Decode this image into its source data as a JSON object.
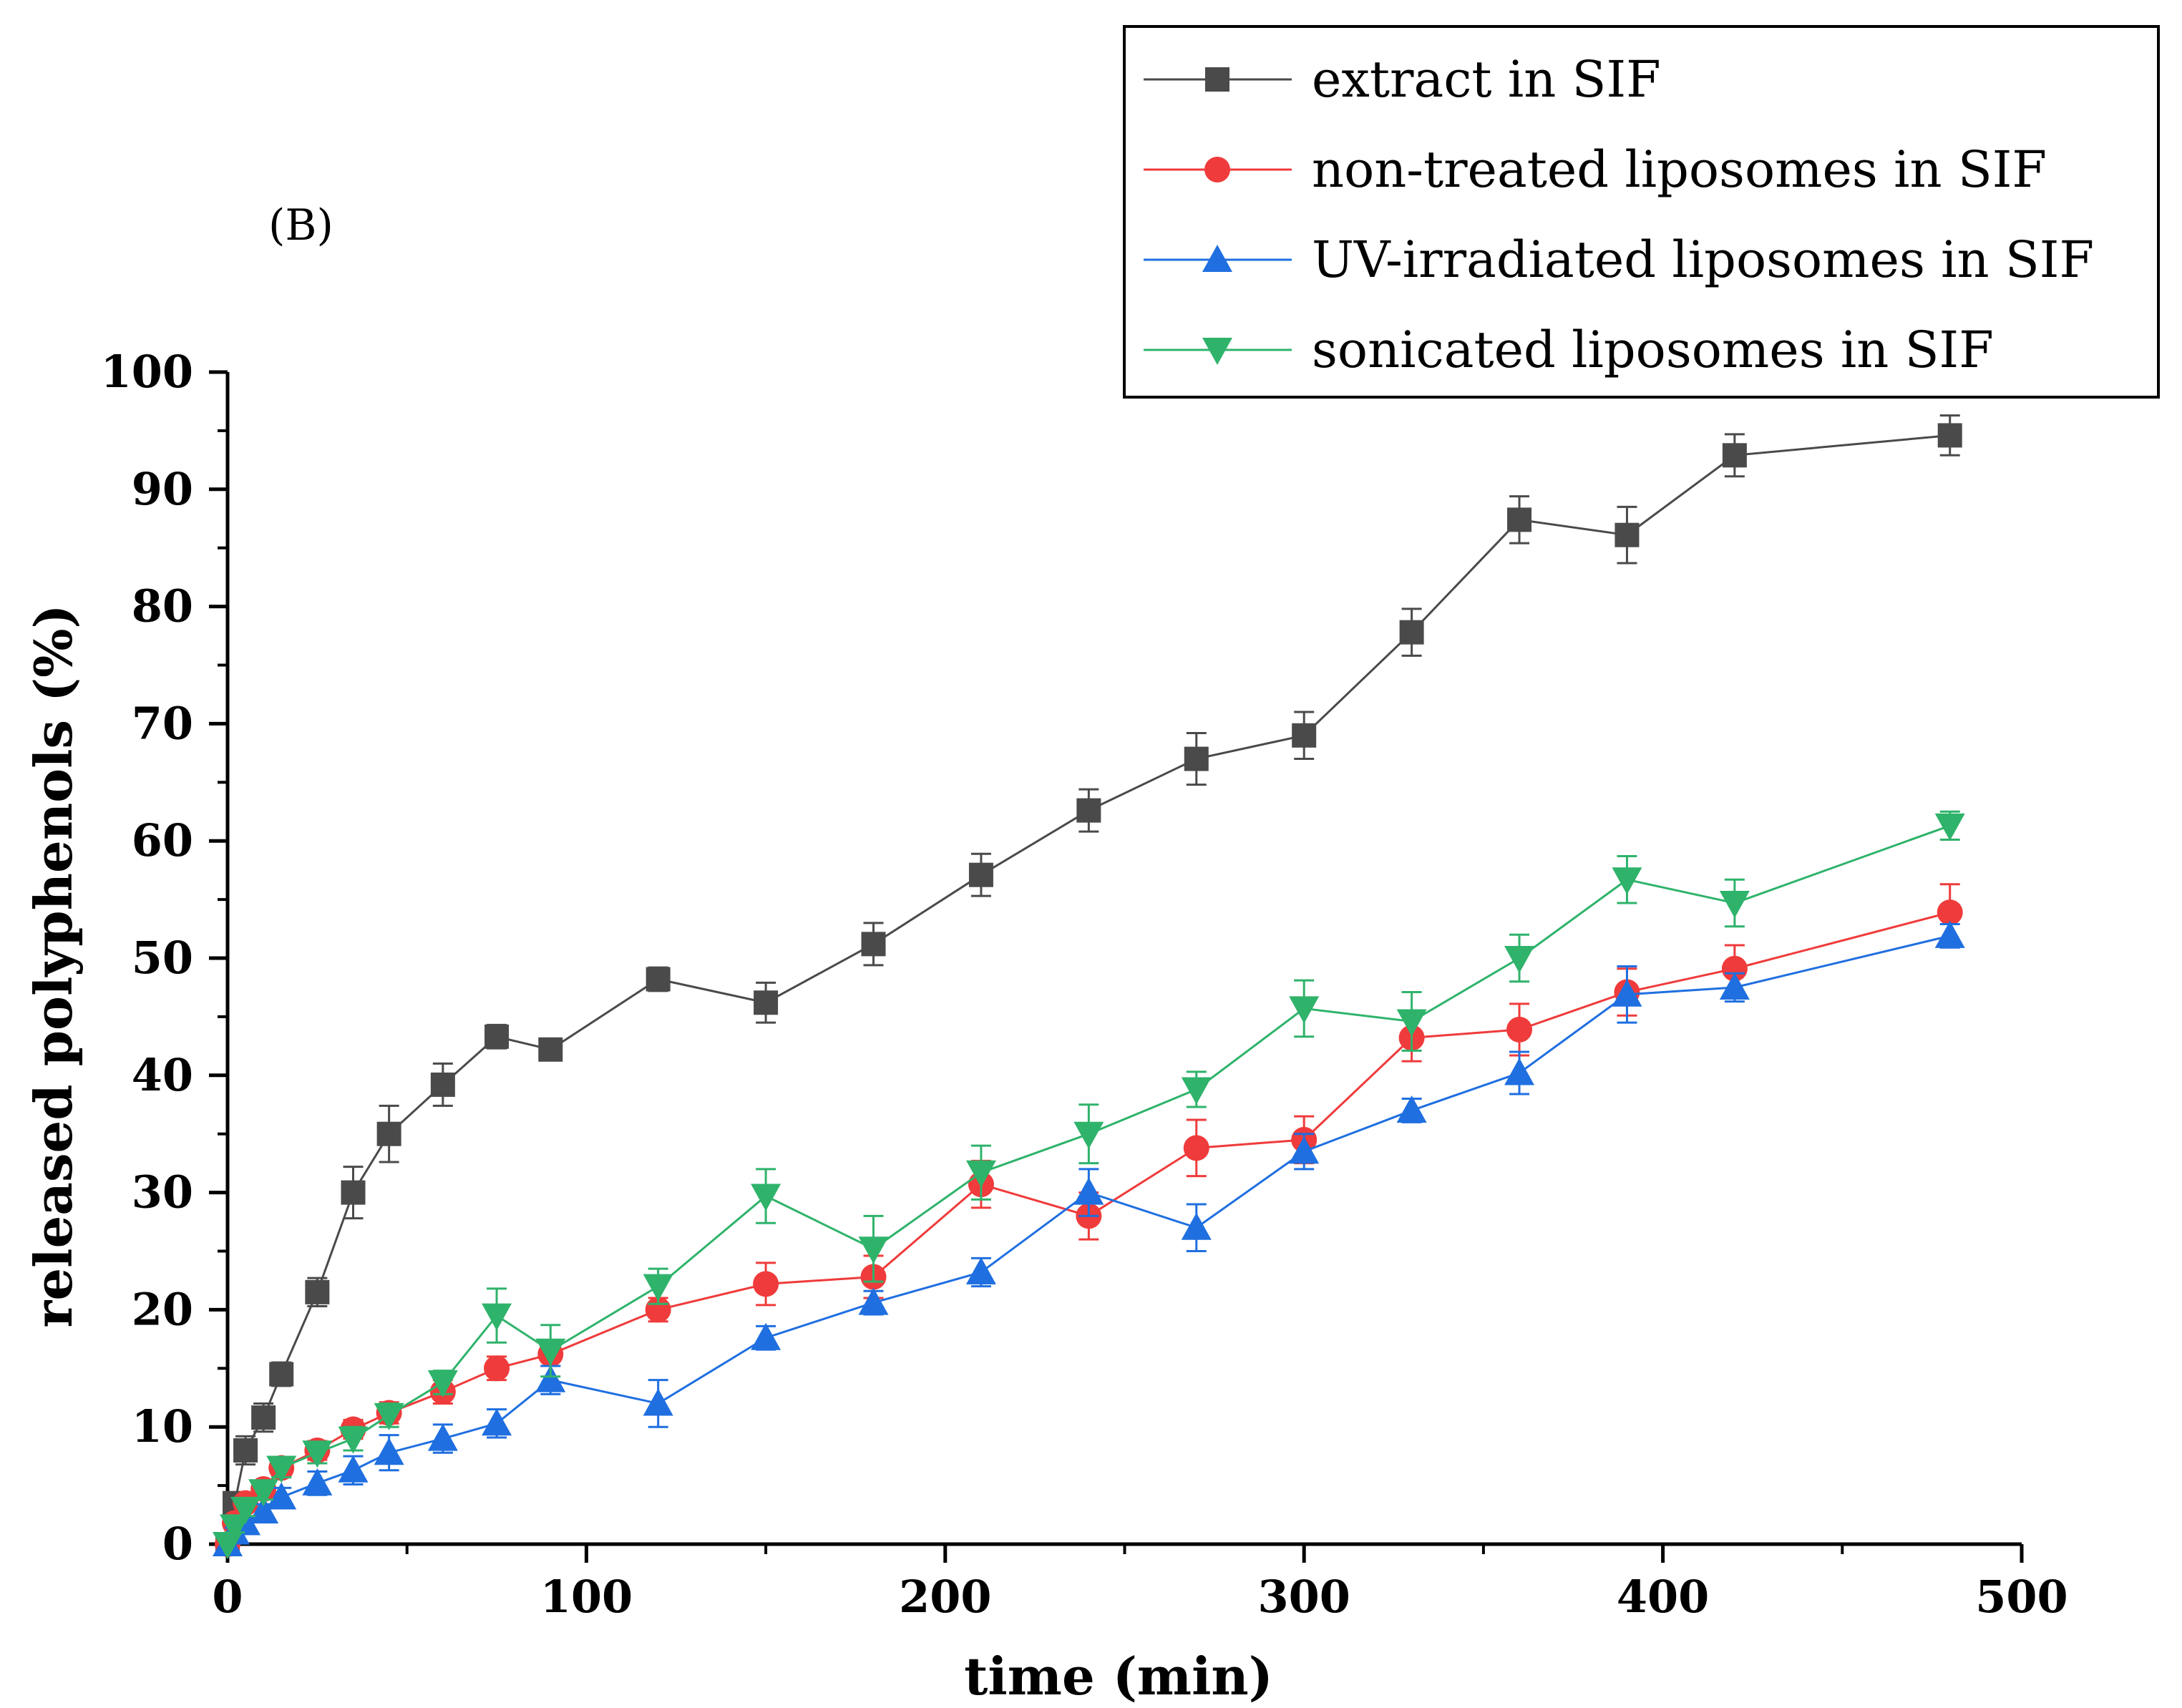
{
  "chart_data": {
    "type": "line",
    "panel_label": "(B)",
    "xlabel": "time (min)",
    "ylabel": "released polyphenols (%)",
    "xlim": [
      0,
      500
    ],
    "ylim": [
      0,
      100
    ],
    "x_ticks": [
      0,
      100,
      200,
      300,
      400,
      500
    ],
    "y_ticks": [
      0,
      10,
      20,
      30,
      40,
      50,
      60,
      70,
      80,
      90,
      100
    ],
    "x_tick_labels": [
      "0",
      "100",
      "200",
      "300",
      "400",
      "500"
    ],
    "y_tick_labels": [
      "0",
      "10",
      "20",
      "30",
      "40",
      "50",
      "60",
      "70",
      "80",
      "90",
      "100"
    ],
    "legend_position": "top-right",
    "series": [
      {
        "name": "extract in SIF",
        "color": "#4a4a4a",
        "marker": "square",
        "x": [
          0,
          2,
          5,
          10,
          15,
          25,
          35,
          45,
          60,
          75,
          90,
          120,
          150,
          180,
          210,
          240,
          270,
          300,
          330,
          360,
          390,
          420,
          480
        ],
        "y": [
          0,
          3.5,
          8,
          10.8,
          14.5,
          21.5,
          30,
          35,
          39.2,
          43.3,
          42.2,
          48.2,
          46.2,
          51.2,
          57.1,
          62.6,
          67,
          69,
          77.8,
          87.4,
          86.1,
          92.9,
          94.6
        ],
        "err": [
          0,
          0.8,
          1.2,
          1.2,
          1.0,
          1.2,
          2.2,
          2.4,
          1.8,
          1.0,
          0.8,
          1.0,
          1.7,
          1.8,
          1.8,
          1.8,
          2.2,
          2.0,
          2.0,
          2.0,
          2.4,
          1.8,
          1.7
        ]
      },
      {
        "name": "non-treated liposomes in SIF",
        "color": "#ef3b3b",
        "marker": "circle",
        "x": [
          0,
          2,
          5,
          10,
          15,
          25,
          35,
          45,
          60,
          75,
          90,
          120,
          150,
          180,
          210,
          240,
          270,
          300,
          330,
          360,
          390,
          420,
          480
        ],
        "y": [
          0,
          1.8,
          3.5,
          4.7,
          6.5,
          8.0,
          9.8,
          11.2,
          13.0,
          15.0,
          16.2,
          20.0,
          22.2,
          22.8,
          30.7,
          28.0,
          33.8,
          34.5,
          43.2,
          43.9,
          47.1,
          49.1,
          53.9
        ],
        "err": [
          0,
          0.5,
          0.6,
          0.7,
          0.7,
          0.8,
          0.8,
          0.9,
          1.0,
          1.0,
          1.0,
          1.0,
          1.8,
          1.8,
          2.0,
          2.0,
          2.4,
          2.0,
          2.0,
          2.2,
          2.0,
          2.0,
          2.4
        ]
      },
      {
        "name": "UV-irradiated liposomes in SIF",
        "color": "#1f6fe0",
        "marker": "triangle-up",
        "x": [
          0,
          2,
          5,
          10,
          15,
          25,
          35,
          45,
          60,
          75,
          90,
          120,
          150,
          180,
          210,
          240,
          270,
          300,
          330,
          360,
          390,
          420,
          480
        ],
        "y": [
          0,
          1.0,
          1.8,
          2.8,
          4.0,
          5.2,
          6.3,
          7.8,
          9.0,
          10.3,
          14.0,
          12.0,
          17.6,
          20.6,
          23.2,
          30.0,
          27.0,
          33.5,
          37.0,
          40.2,
          46.9,
          47.5,
          51.9
        ],
        "err": [
          0,
          0.4,
          0.5,
          0.6,
          0.8,
          1.0,
          1.2,
          1.5,
          1.2,
          1.2,
          1.2,
          2.0,
          1.0,
          1.0,
          1.2,
          2.0,
          2.0,
          1.5,
          1.0,
          1.8,
          2.4,
          1.2,
          1.0
        ]
      },
      {
        "name": "sonicated liposomes in SIF",
        "color": "#2fb36b",
        "marker": "triangle-down",
        "x": [
          0,
          2,
          5,
          10,
          15,
          25,
          35,
          45,
          60,
          75,
          90,
          120,
          150,
          180,
          210,
          240,
          270,
          300,
          330,
          360,
          390,
          420,
          480
        ],
        "y": [
          0,
          1.5,
          3.0,
          4.5,
          6.5,
          7.8,
          9.0,
          11.0,
          13.8,
          19.5,
          16.5,
          22.0,
          29.7,
          25.2,
          31.7,
          35.0,
          38.8,
          45.7,
          44.6,
          50.0,
          56.7,
          54.7,
          61.3
        ]
      }
    ],
    "series_err_sonicated": [
      0,
      0.5,
      0.6,
      0.7,
      0.8,
      0.9,
      1.0,
      1.0,
      1.0,
      2.3,
      2.2,
      1.5,
      2.3,
      2.8,
      2.3,
      2.5,
      1.5,
      2.4,
      2.5,
      2.0,
      2.0,
      2.0,
      1.2
    ]
  }
}
